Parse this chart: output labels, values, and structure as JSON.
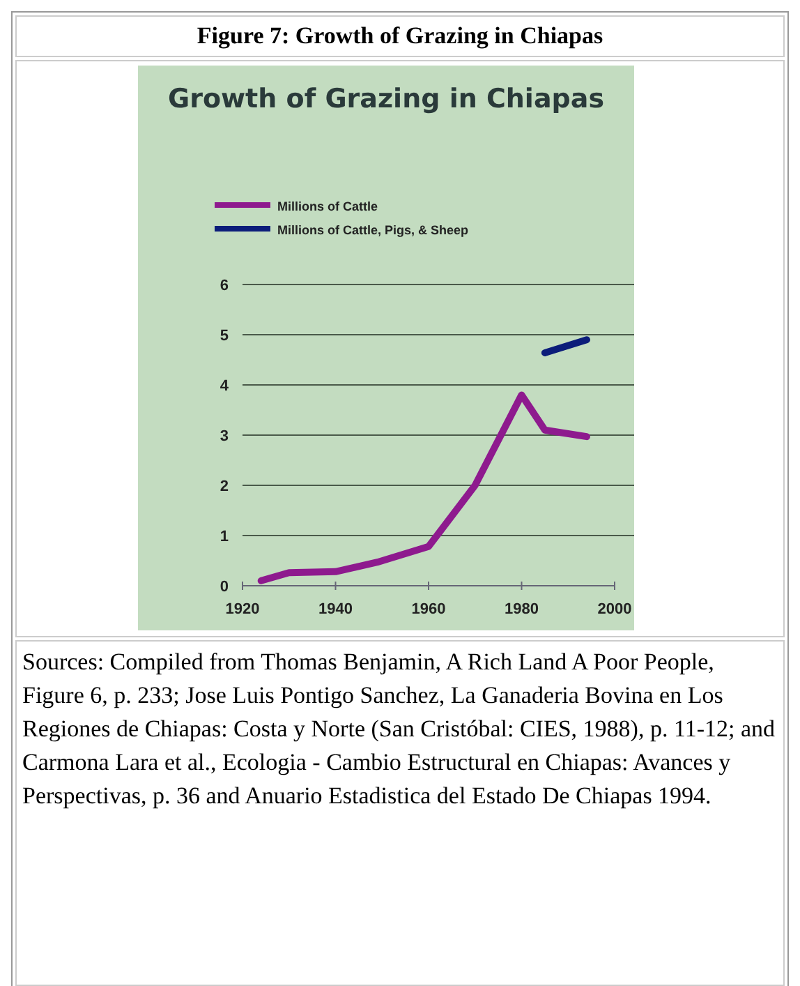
{
  "chart_data": {
    "type": "line",
    "title": "Figure 7: Growth of Grazing in Chiapas",
    "subtitle": "Growth of Grazing in Chiapas",
    "series": [
      {
        "name": "Millions of Cattle",
        "color": "#8e1a8e",
        "x": [
          1924,
          1930,
          1940,
          1949,
          1960,
          1970,
          1980,
          1985,
          1994
        ],
        "values": [
          0.1,
          0.26,
          0.28,
          0.47,
          0.78,
          2.0,
          3.8,
          3.1,
          2.97
        ]
      },
      {
        "name": "Millions of Cattle, Pigs, & Sheep",
        "color": "#0c1d7a",
        "x": [
          1985,
          1994
        ],
        "values": [
          4.64,
          4.9
        ]
      }
    ],
    "xlim": [
      1920,
      2000
    ],
    "xticks": [
      1920,
      1940,
      1960,
      1980,
      2000
    ],
    "ylim": [
      0,
      6
    ],
    "yticks": [
      0,
      1,
      2,
      3,
      4,
      5,
      6
    ],
    "grid": "y",
    "legend": "top left",
    "marker": "none",
    "line_style": "solid",
    "annotations": [
      "Sources: Compiled from Thomas Benjamin, A Rich Land A Poor People, Figure 6, p. 233; Jose Luis Pontigo Sanchez, La Ganaderia Bovina en Los Regiones de Chiapas: Costa y Norte (San Cristóbal: CIES, 1988), p. 11-12; and Carmona Lara et al., Ecologia - Cambio Estructural en Chiapas: Avances y Perspectivas, p. 36 and Anuario Estadistica del Estado De Chiapas 1994."
    ]
  }
}
